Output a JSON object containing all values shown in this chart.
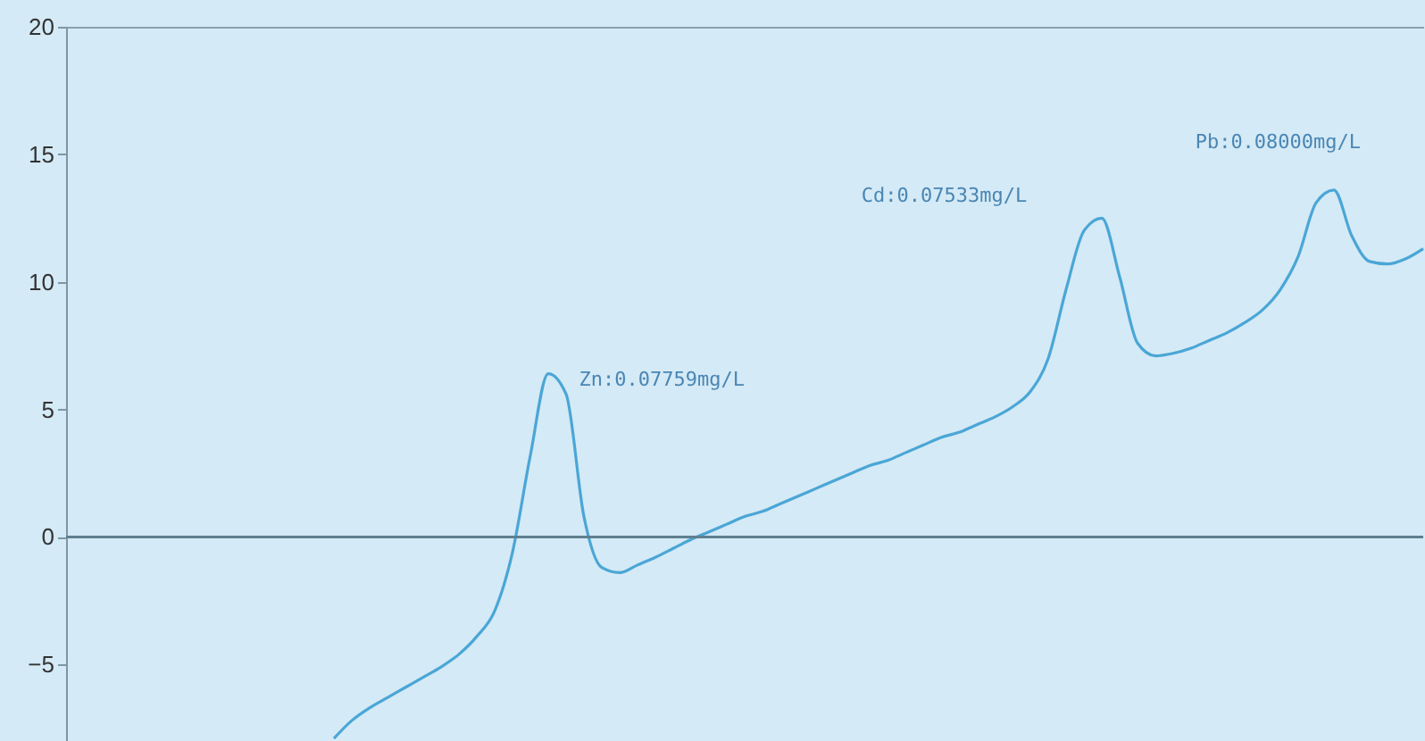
{
  "chart_data": {
    "type": "line",
    "categories": [
      null,
      null,
      null,
      null,
      null,
      null,
      null,
      null,
      null,
      null,
      null,
      null,
      null,
      null,
      null,
      null,
      null,
      null,
      null,
      null,
      null,
      null,
      null,
      null,
      null,
      null,
      null,
      null,
      null,
      null,
      null,
      null,
      null,
      null,
      null,
      null,
      null,
      null,
      null,
      null,
      null,
      null,
      null,
      null,
      null,
      null,
      null,
      null,
      null,
      null,
      null,
      null,
      null,
      null,
      null,
      null,
      null,
      null,
      null,
      null,
      null,
      null,
      null,
      null,
      null,
      null,
      null,
      null,
      null,
      null,
      null,
      null,
      null,
      null,
      null,
      null,
      null
    ],
    "series": [
      {
        "color": "#4aa6d6",
        "values": [
          null,
          null,
          null,
          null,
          null,
          null,
          null,
          null,
          null,
          null,
          null,
          null,
          null,
          null,
          null,
          -7.9,
          -7.2,
          -6.7,
          -6.3,
          -5.9,
          -5.5,
          -5.1,
          -4.6,
          -3.9,
          -2.9,
          -0.6,
          3.2,
          6.4,
          5.6,
          0.8,
          -1.2,
          -1.4,
          -1.1,
          -0.8,
          -0.45,
          -0.1,
          0.2,
          0.5,
          0.8,
          1.0,
          1.3,
          1.6,
          1.9,
          2.2,
          2.5,
          2.8,
          3.0,
          3.3,
          3.6,
          3.9,
          4.1,
          4.4,
          4.7,
          5.1,
          5.7,
          7.0,
          9.7,
          12.0,
          12.5,
          10.2,
          7.6,
          7.1,
          7.2,
          7.4,
          7.7,
          8.0,
          8.4,
          8.9,
          9.7,
          11.0,
          13.1,
          13.6,
          11.8,
          10.8,
          10.7,
          10.9,
          11.3
        ]
      }
    ],
    "ylim": [
      -8,
      20
    ],
    "yticks": [
      -5,
      0,
      5,
      10,
      15,
      20
    ],
    "grid": false,
    "tick_labels": "y",
    "line_style": "solid",
    "marker": "none",
    "ref_lines": [
      {
        "axis": "y",
        "value": 0,
        "color": "#5f7f8f"
      }
    ],
    "annotations": [
      "Zn:0.07759mg/L",
      "Cd:0.07533mg/L",
      "Pb:0.08000mg/L"
    ]
  }
}
